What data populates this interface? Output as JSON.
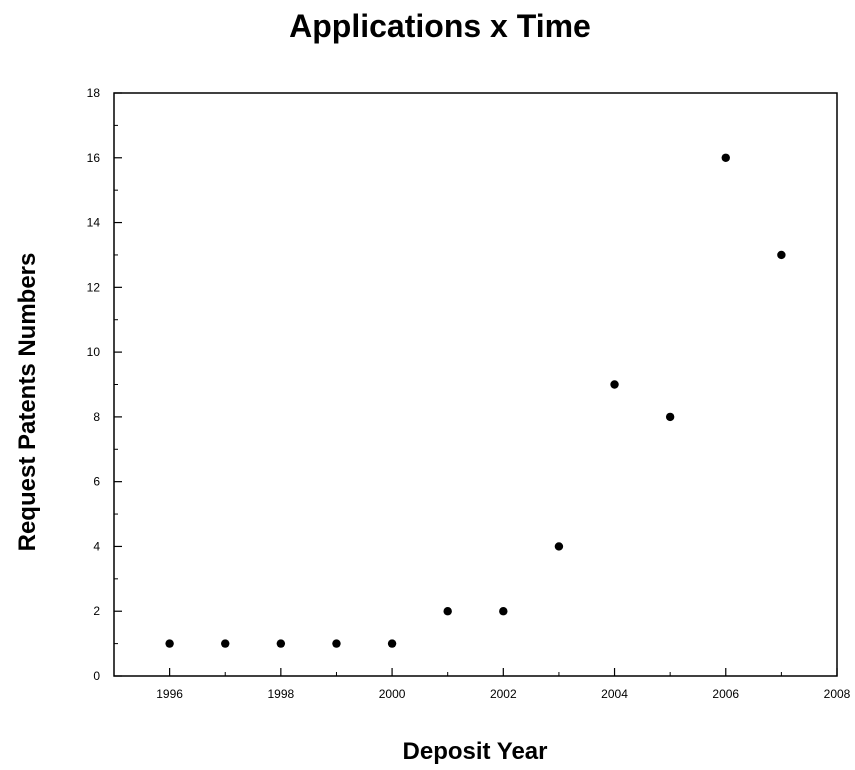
{
  "chart_data": {
    "type": "scatter",
    "title": "Applications x Time",
    "xlabel": "Deposit Year",
    "ylabel": "Request Patents Numbers",
    "xlim": [
      1995,
      2008
    ],
    "ylim": [
      0,
      18
    ],
    "x_ticks": [
      1996,
      1998,
      2000,
      2002,
      2004,
      2006,
      2008
    ],
    "y_ticks": [
      0,
      2,
      4,
      6,
      8,
      10,
      12,
      14,
      16,
      18
    ],
    "grid": false,
    "legend": "none",
    "marker_color": "#000000",
    "series": [
      {
        "x": [
          1996,
          1997,
          1998,
          1999,
          2000,
          2001,
          2002,
          2003,
          2004,
          2005,
          2006,
          2007
        ],
        "y": [
          1,
          1,
          1,
          1,
          1,
          2,
          2,
          4,
          9,
          8,
          16,
          13
        ]
      }
    ]
  }
}
